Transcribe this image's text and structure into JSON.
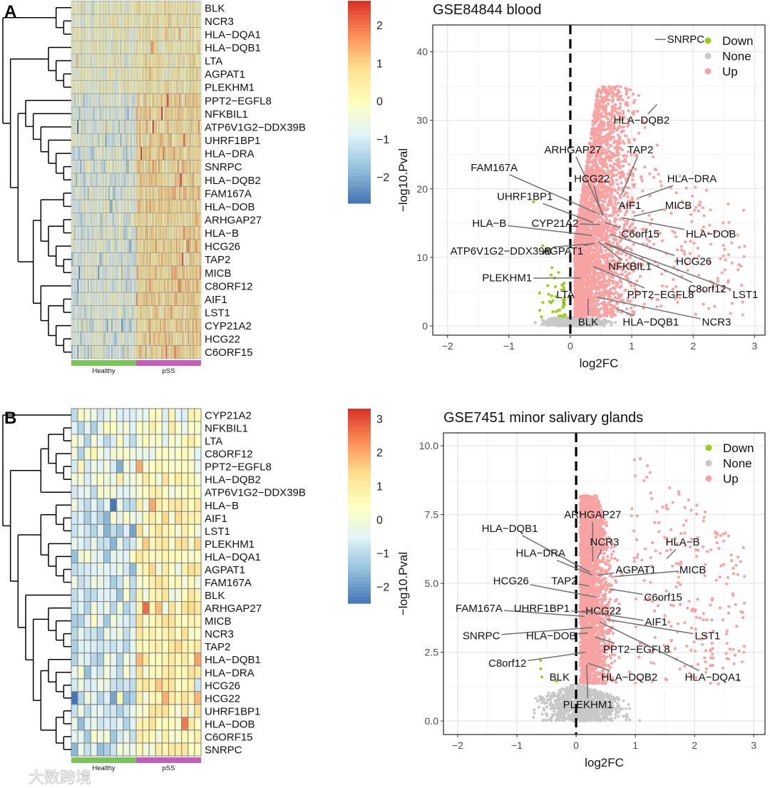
{
  "figure": {
    "panel_labels": [
      "A",
      "B"
    ],
    "watermark": "大数跨境"
  },
  "chart_data": [
    {
      "type": "heatmap",
      "panel": "A",
      "rows": [
        "BLK",
        "NCR3",
        "HLA−DQA1",
        "HLA−DQB1",
        "LTA",
        "AGPAT1",
        "PLEKHM1",
        "PPT2−EGFL8",
        "NFKBIL1",
        "ATP6V1G2−DDX39B",
        "UHRF1BP1",
        "HLA−DRA",
        "SNRPC",
        "HLA−DQB2",
        "FAM167A",
        "HLA−DOB",
        "ARHGAP27",
        "HLA−B",
        "HCG26",
        "TAP2",
        "MICB",
        "C8ORF12",
        "AIF1",
        "LST1",
        "CYP21A2",
        "HCG22",
        "C6ORF15"
      ],
      "column_groups": [
        {
          "name": "Healthy",
          "n": 44,
          "color": "#7dc35b"
        },
        {
          "name": "pSS",
          "n": 44,
          "color": "#c25fb8"
        }
      ],
      "color_scale": {
        "range": [
          -2.69,
          2.64
        ],
        "ticks": [
          2,
          1,
          0,
          -1,
          -2
        ],
        "tick_labels": [
          "2",
          "1",
          "0",
          "−1",
          "−2"
        ],
        "colors": [
          "#4575b4",
          "#91bfdb",
          "#e0f3f8",
          "#ffffbf",
          "#fee090",
          "#fc8d59",
          "#d73027"
        ]
      },
      "row_dendrogram": [
        [
          0,
          [
            1,
            2
          ]
        ],
        [
          [
            3,
            [
              4,
              [
                5,
                6
              ]
            ]
          ],
          [
            [
              7,
              [
                8,
                [
                  9,
                  [
                    10,
                    [
                      11,
                      [
                        12,
                        13
                      ]
                    ]
                  ]
                ]
              ]
            ],
            [
              [
                [
                  14,
                  15
                ],
                [
                  [
                    16,
                    17
                  ],
                  [
                    18,
                    [
                      19,
                      20
                    ]
                  ]
                ]
              ],
              [
                21,
                [
                  [
                    22,
                    23
                  ],
                  [
                    24,
                    [
                      25,
                      26
                    ]
                  ]
                ]
              ]
            ]
          ]
        ]
      ]
    },
    {
      "type": "scatter",
      "panel": "A",
      "title": "GSE84844 blood",
      "xlabel": "log2FC",
      "ylabel": "−log10.Pval",
      "xlim": [
        -2.24,
        3.17
      ],
      "ylim": [
        -1.35,
        43.9
      ],
      "xticks": [
        -2,
        -1,
        0,
        1,
        2,
        3
      ],
      "xtick_labels": [
        "−2",
        "−1",
        "0",
        "1",
        "2",
        "3"
      ],
      "yticks": [
        0,
        10,
        20,
        30,
        40
      ],
      "ytick_labels": [
        "0",
        "10",
        "20",
        "30",
        "40"
      ],
      "threshold_x": 0,
      "grid": true,
      "legend": {
        "position": "top-right",
        "entries": [
          {
            "label": "Down",
            "color": "#9acd1e"
          },
          {
            "label": "None",
            "color": "#c8c8c8"
          },
          {
            "label": "Up",
            "color": "#f8a3a3"
          }
        ]
      },
      "labeled_genes": [
        {
          "gene": "SNRPC",
          "x": 1.38,
          "y": 41.8,
          "label_x": 1.88,
          "label_y": 41.8
        },
        {
          "gene": "HLA−DQB2",
          "x": 1.41,
          "y": 32.3,
          "label_x": 1.16,
          "label_y": 30.0
        },
        {
          "gene": "ARHGAP27",
          "x": 0.54,
          "y": 16.1,
          "label_x": 0.04,
          "label_y": 25.7
        },
        {
          "gene": "TAP2",
          "x": 0.83,
          "y": 19.1,
          "label_x": 1.14,
          "label_y": 25.7
        },
        {
          "gene": "FAM167A",
          "x": 0.47,
          "y": 16.3,
          "label_x": -1.24,
          "label_y": 23.1
        },
        {
          "gene": "HCG22",
          "x": 0.52,
          "y": 16.1,
          "label_x": 0.35,
          "label_y": 21.5
        },
        {
          "gene": "HLA−DRA",
          "x": 1.12,
          "y": 18.7,
          "label_x": 1.98,
          "label_y": 21.5
        },
        {
          "gene": "UHRF1BP1",
          "x": 0.37,
          "y": 15.1,
          "label_x": -0.74,
          "label_y": 18.9
        },
        {
          "gene": "AIF1",
          "x": 0.92,
          "y": 16.9,
          "label_x": 0.97,
          "label_y": 17.6
        },
        {
          "gene": "MICB",
          "x": 1.03,
          "y": 16.0,
          "label_x": 1.76,
          "label_y": 17.6
        },
        {
          "gene": "HLA−B",
          "x": 0.35,
          "y": 13.2,
          "label_x": -1.32,
          "label_y": 15.0
        },
        {
          "gene": "CYP21A2",
          "x": 0.48,
          "y": 14.8,
          "label_x": -0.25,
          "label_y": 15.0
        },
        {
          "gene": "C6orf15",
          "x": 0.56,
          "y": 15.1,
          "label_x": 1.14,
          "label_y": 13.4
        },
        {
          "gene": "HLA−DOB",
          "x": 0.83,
          "y": 15.8,
          "label_x": 2.29,
          "label_y": 13.4
        },
        {
          "gene": "ATP6V1G2−DDX39B",
          "x": 0.38,
          "y": 12.0,
          "label_x": -1.13,
          "label_y": 10.9
        },
        {
          "gene": "AGPAT1",
          "x": 0.39,
          "y": 12.1,
          "label_x": -0.12,
          "label_y": 10.9
        },
        {
          "gene": "HCG26",
          "x": 0.64,
          "y": 13.4,
          "label_x": 2.01,
          "label_y": 9.4
        },
        {
          "gene": "NFKBIL1",
          "x": 0.46,
          "y": 12.3,
          "label_x": 0.97,
          "label_y": 8.7
        },
        {
          "gene": "PLEKHM1",
          "x": 0.17,
          "y": 7.0,
          "label_x": -1.03,
          "label_y": 7.0
        },
        {
          "gene": "C8orf12",
          "x": 0.58,
          "y": 12.0,
          "label_x": 2.23,
          "label_y": 5.4
        },
        {
          "gene": "LST1",
          "x": 0.56,
          "y": 12.1,
          "label_x": 2.85,
          "label_y": 4.6
        },
        {
          "gene": "PPT2−EGFL8",
          "x": 0.37,
          "y": 8.7,
          "label_x": 1.47,
          "label_y": 4.6
        },
        {
          "gene": "LTA",
          "x": -0.1,
          "y": 3.2,
          "label_x": -0.08,
          "label_y": 4.6
        },
        {
          "gene": "BLK",
          "x": 0.29,
          "y": 4.0,
          "label_x": 0.29,
          "label_y": 0.6
        },
        {
          "gene": "HLA−DQB1",
          "x": 0.75,
          "y": 2.5,
          "label_x": 1.31,
          "label_y": 0.6
        },
        {
          "gene": "NCR3",
          "x": 0.43,
          "y": 4.2,
          "label_x": 2.38,
          "label_y": 0.6
        }
      ]
    },
    {
      "type": "heatmap",
      "panel": "B",
      "rows": [
        "CYP21A2",
        "NFKBIL1",
        "LTA",
        "C8ORF12",
        "PPT2−EGFL8",
        "HLA−DQB2",
        "ATP6V1G2−DDX39B",
        "HLA−B",
        "AIF1",
        "LST1",
        "PLEKHM1",
        "HLA−DQA1",
        "AGPAT1",
        "FAM167A",
        "BLK",
        "ARHGAP27",
        "MICB",
        "NCR3",
        "TAP2",
        "HLA−DQB1",
        "HLA−DRA",
        "HCG26",
        "HCG22",
        "UHRF1BP1",
        "HLA−DOB",
        "C6ORF15",
        "SNRPC"
      ],
      "column_groups": [
        {
          "name": "Healthy",
          "n": 10,
          "color": "#7dc35b"
        },
        {
          "name": "pSS",
          "n": 10,
          "color": "#c25fb8"
        }
      ],
      "color_scale": {
        "range": [
          -2.5,
          3.3
        ],
        "ticks": [
          3,
          2,
          1,
          0,
          -1,
          -2
        ],
        "tick_labels": [
          "3",
          "2",
          "1",
          "0",
          "−1",
          "−2"
        ],
        "colors": [
          "#4575b4",
          "#91bfdb",
          "#e0f3f8",
          "#ffffbf",
          "#fee090",
          "#fc8d59",
          "#d73027"
        ]
      },
      "row_dendrogram": [
        0,
        [
          [
            [
              [
                1,
                2
              ],
              [
                3,
                [
                  4,
                  5
                ]
              ]
            ],
            6
          ],
          [
            [
              [
                7,
                [
                  8,
                  9
                ]
              ],
              [
                10,
                [
                  11,
                  [
                    12,
                    13
                  ]
                ]
              ]
            ],
            [
              14,
              [
                [
                  15,
                  [
                    16,
                    [
                      17,
                      18
                    ]
                  ]
                ],
                [
                  [
                    19,
                    [
                      20,
                      [
                        21,
                        22
                      ]
                    ]
                  ],
                  [
                    [
                      23,
                      24
                    ],
                    [
                      25,
                      26
                    ]
                  ]
                ]
              ]
            ]
          ]
        ]
      ]
    },
    {
      "type": "scatter",
      "panel": "B",
      "title": "GSE7451 minor salivary glands",
      "xlabel": "log2FC",
      "ylabel": "−log10.Pval",
      "xlim": [
        -2.24,
        3.19
      ],
      "ylim": [
        -0.49,
        10.47
      ],
      "xticks": [
        -2,
        -1,
        0,
        1,
        2,
        3
      ],
      "xtick_labels": [
        "−2",
        "−1",
        "0",
        "1",
        "2",
        "3"
      ],
      "yticks": [
        0,
        2.5,
        5,
        7.5,
        10
      ],
      "ytick_labels": [
        "0.0",
        "2.5",
        "5.0",
        "7.5",
        "10.0"
      ],
      "threshold_x": 0,
      "grid": true,
      "legend": {
        "position": "top-right",
        "entries": [
          {
            "label": "Down",
            "color": "#9acd1e"
          },
          {
            "label": "None",
            "color": "#c8c8c8"
          },
          {
            "label": "Up",
            "color": "#f8a3a3"
          }
        ]
      },
      "labeled_genes": [
        {
          "gene": "ARHGAP27",
          "x": 0.28,
          "y": 5.8,
          "label_x": 0.28,
          "label_y": 7.5
        },
        {
          "gene": "HLA−DQB1",
          "x": 0.24,
          "y": 5.4,
          "label_x": -1.12,
          "label_y": 7.0
        },
        {
          "gene": "NCR3",
          "x": 0.36,
          "y": 5.9,
          "label_x": 0.48,
          "label_y": 6.5
        },
        {
          "gene": "HLA−B",
          "x": 1.53,
          "y": 5.9,
          "label_x": 1.8,
          "label_y": 6.5
        },
        {
          "gene": "HLA−DRA",
          "x": 0.28,
          "y": 5.3,
          "label_x": -0.6,
          "label_y": 6.1
        },
        {
          "gene": "AGPAT1",
          "x": 0.36,
          "y": 5.3,
          "label_x": 1.01,
          "label_y": 5.5
        },
        {
          "gene": "MICB",
          "x": 0.65,
          "y": 5.25,
          "label_x": 1.97,
          "label_y": 5.5
        },
        {
          "gene": "HCG26",
          "x": 0.34,
          "y": 4.5,
          "label_x": -1.1,
          "label_y": 5.1
        },
        {
          "gene": "TAP2",
          "x": 0.22,
          "y": 4.9,
          "label_x": -0.2,
          "label_y": 5.1
        },
        {
          "gene": "C6orf15",
          "x": 0.56,
          "y": 4.8,
          "label_x": 1.47,
          "label_y": 4.5
        },
        {
          "gene": "FAM167A",
          "x": 0.14,
          "y": 3.8,
          "label_x": -1.64,
          "label_y": 4.1
        },
        {
          "gene": "UHRF1BP1",
          "x": 0.18,
          "y": 3.95,
          "label_x": -0.58,
          "label_y": 4.1
        },
        {
          "gene": "HCG22",
          "x": 0.3,
          "y": 4.05,
          "label_x": 0.46,
          "label_y": 4.0
        },
        {
          "gene": "AIF1",
          "x": 0.1,
          "y": 4.0,
          "label_x": 1.35,
          "label_y": 3.6
        },
        {
          "gene": "LST1",
          "x": 0.5,
          "y": 3.7,
          "label_x": 2.22,
          "label_y": 3.1
        },
        {
          "gene": "SNRPC",
          "x": 0.28,
          "y": 3.4,
          "label_x": -1.6,
          "label_y": 3.1
        },
        {
          "gene": "HLA−DOB",
          "x": 0.2,
          "y": 3.2,
          "label_x": -0.42,
          "label_y": 3.1
        },
        {
          "gene": "PPT2−EGFL8",
          "x": 0.32,
          "y": 3.05,
          "label_x": 1.02,
          "label_y": 2.6
        },
        {
          "gene": "C8orf12",
          "x": 0.16,
          "y": 2.5,
          "label_x": -1.16,
          "label_y": 2.1
        },
        {
          "gene": "BLK",
          "x": -0.33,
          "y": 1.5,
          "label_x": -0.28,
          "label_y": 1.6
        },
        {
          "gene": "HLA−DQB2",
          "x": 0.2,
          "y": 2.1,
          "label_x": 0.9,
          "label_y": 1.6
        },
        {
          "gene": "HLA−DQA1",
          "x": 0.4,
          "y": 3.6,
          "label_x": 2.31,
          "label_y": 1.6
        },
        {
          "gene": "PLEKHM1",
          "x": 0.18,
          "y": 2.05,
          "label_x": 0.2,
          "label_y": 0.6
        }
      ]
    }
  ]
}
